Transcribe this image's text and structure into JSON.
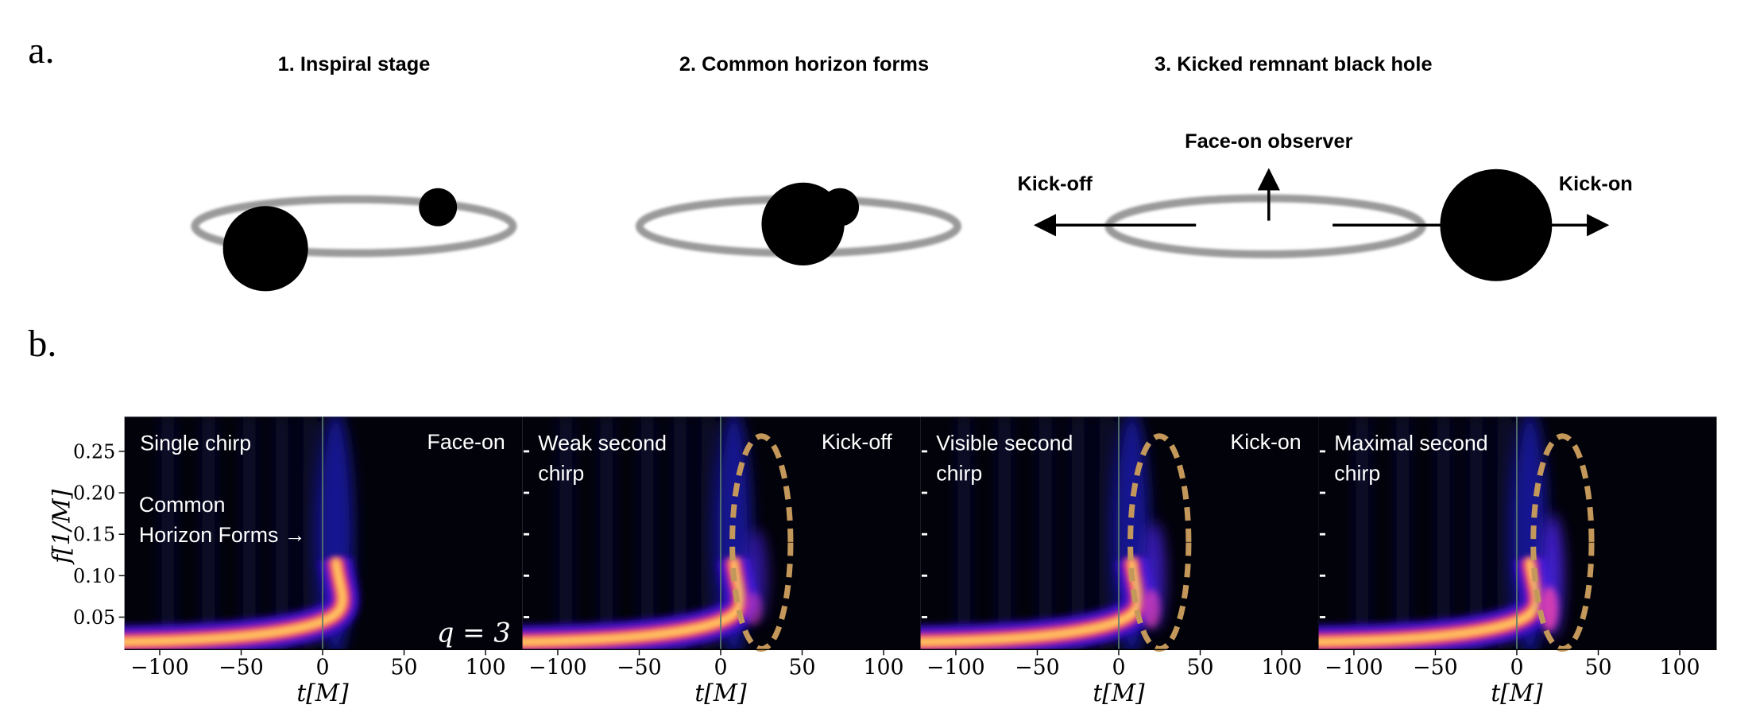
{
  "panel_a": {
    "label": "a.",
    "stages": [
      {
        "title": "1. Inspiral stage"
      },
      {
        "title": "2. Common horizon forms"
      },
      {
        "title": "3. Kicked remnant  black hole"
      }
    ],
    "annotations": {
      "observer": "Face-on observer",
      "kick_off": "Kick-off",
      "kick_on": "Kick-on"
    }
  },
  "panel_b": {
    "label": "b.",
    "y_axis_label": "f[1/M]",
    "x_axis_label": "t[M]",
    "y_ticks": [
      "0.25",
      "0.20",
      "0.15",
      "0.10",
      "0.05"
    ],
    "x_ticks": [
      "−100",
      "−50",
      "0",
      "50",
      "100"
    ],
    "plots": [
      {
        "title_lines": [
          "Single chirp"
        ],
        "orientation": "Face-on",
        "note_lines": [
          "Common",
          "Horizon Forms →"
        ],
        "mass_ratio": "q = 3"
      },
      {
        "title_lines": [
          "Weak second",
          "chirp"
        ],
        "orientation": "Kick-off"
      },
      {
        "title_lines": [
          "Visible second",
          "chirp"
        ],
        "orientation": "Kick-on"
      },
      {
        "title_lines": [
          "Maximal second",
          "chirp"
        ]
      }
    ]
  }
}
